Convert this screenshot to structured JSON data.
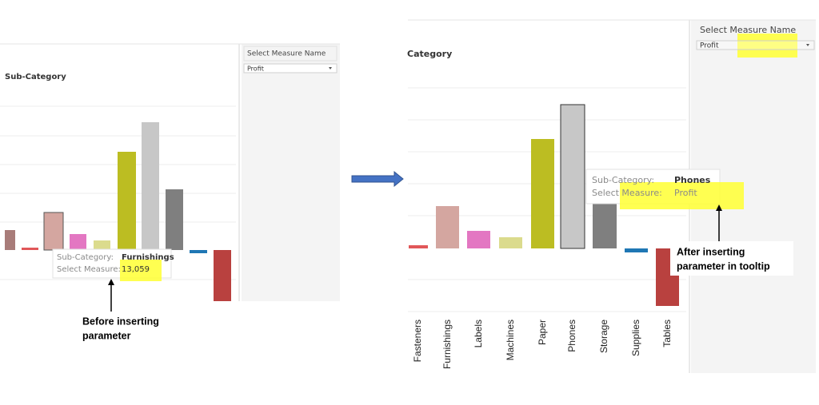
{
  "left": {
    "title": "Sub-Category",
    "filter": {
      "label": "Select Measure Name",
      "value": "Profit"
    },
    "tooltip": {
      "field_label": "Sub-Category:",
      "field_value": "Furnishings",
      "measure_label": "Select Measure:",
      "measure_value": "13,059"
    },
    "annotation": [
      "Before inserting",
      "parameter"
    ]
  },
  "right": {
    "title": "Category",
    "filter": {
      "label": "Select Measure Name",
      "value": "Profit"
    },
    "tooltip": {
      "field_label": "Sub-Category:",
      "field_value": "Phones",
      "measure_label": "Select Measure:",
      "measure_value": "Profit"
    },
    "categories": [
      "Fasteners",
      "Furnishings",
      "Labels",
      "Machines",
      "Paper",
      "Phones",
      "Storage",
      "Supplies",
      "Tables"
    ],
    "annotation": [
      "After inserting",
      "parameter in tooltip"
    ]
  }
}
